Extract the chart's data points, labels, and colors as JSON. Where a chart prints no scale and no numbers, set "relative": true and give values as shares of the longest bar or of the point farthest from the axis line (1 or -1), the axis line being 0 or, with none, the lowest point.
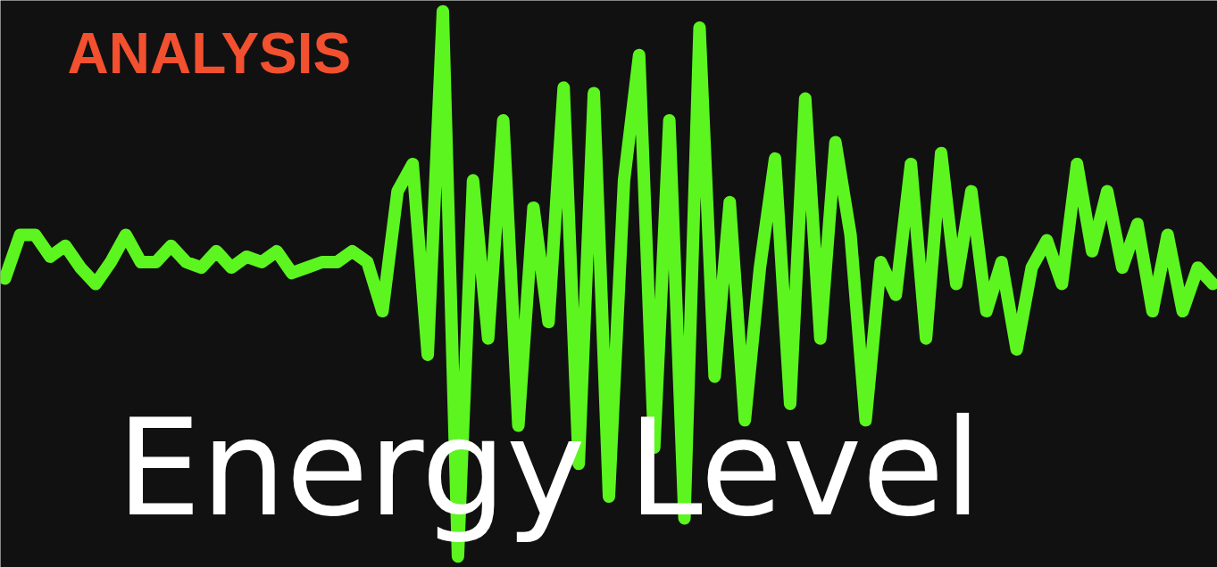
{
  "chart_data": {
    "type": "line",
    "relative": true,
    "title": "ANALYSIS",
    "annotations": [
      "Energy Level"
    ],
    "categories": [
      null,
      null,
      null,
      null,
      null,
      null,
      null,
      null,
      null,
      null,
      null,
      null,
      null,
      null,
      null,
      null,
      null,
      null,
      null,
      null,
      null,
      null,
      null,
      null,
      null,
      null,
      null,
      null,
      null,
      null,
      null,
      null,
      null,
      null,
      null,
      null,
      null,
      null,
      null,
      null,
      null,
      null,
      null,
      null,
      null,
      null,
      null,
      null,
      null,
      null,
      null,
      null,
      null,
      null,
      null,
      null,
      null,
      null,
      null,
      null,
      null,
      null,
      null,
      null,
      null,
      null,
      null,
      null,
      null,
      null,
      null,
      null,
      null,
      null,
      null,
      null,
      null,
      null,
      null,
      null,
      null
    ],
    "series": [
      {
        "color": "#5cf520",
        "values": [
          0.51,
          0.59,
          0.59,
          0.55,
          0.57,
          0.53,
          0.5,
          0.54,
          0.59,
          0.54,
          0.54,
          0.57,
          0.54,
          0.53,
          0.56,
          0.53,
          0.55,
          0.54,
          0.56,
          0.52,
          0.53,
          0.54,
          0.54,
          0.56,
          0.54,
          0.45,
          0.67,
          0.72,
          0.37,
          1.0,
          0,
          0.69,
          0.4,
          0.8,
          0.24,
          0.64,
          0.43,
          0.86,
          0.17,
          0.85,
          0.11,
          0.69,
          0.92,
          0.2,
          0.8,
          0.07,
          0.97,
          0.33,
          0.65,
          0.25,
          0.53,
          0.73,
          0.28,
          0.84,
          0.4,
          0.76,
          0.59,
          0.25,
          0.54,
          0.48,
          0.72,
          0.4,
          0.74,
          0.5,
          0.67,
          0.45,
          0.54,
          0.38,
          0.53,
          0.58,
          0.5,
          0.72,
          0.56,
          0.67,
          0.53,
          0.61,
          0.45,
          0.59,
          0.45,
          0.53,
          0.5
        ]
      }
    ],
    "grid": false
  }
}
